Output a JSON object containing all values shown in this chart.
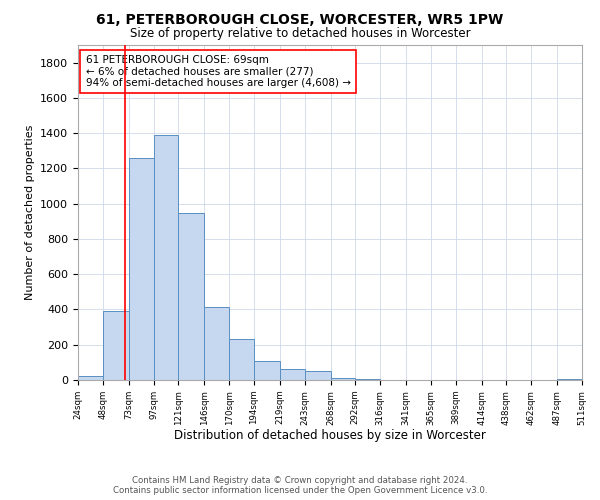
{
  "title": "61, PETERBOROUGH CLOSE, WORCESTER, WR5 1PW",
  "subtitle": "Size of property relative to detached houses in Worcester",
  "xlabel": "Distribution of detached houses by size in Worcester",
  "ylabel": "Number of detached properties",
  "bar_edges": [
    24,
    48,
    73,
    97,
    121,
    146,
    170,
    194,
    219,
    243,
    268,
    292,
    316,
    341,
    365,
    389,
    414,
    438,
    462,
    487,
    511
  ],
  "bar_heights": [
    25,
    390,
    1260,
    1390,
    950,
    415,
    235,
    110,
    65,
    50,
    10,
    5,
    2,
    0,
    0,
    0,
    0,
    0,
    0,
    5
  ],
  "bar_color": "#c5d8f0",
  "bar_edge_color": "#5a8fc2",
  "ylim": [
    0,
    1900
  ],
  "yticks": [
    0,
    200,
    400,
    600,
    800,
    1000,
    1200,
    1400,
    1600,
    1800
  ],
  "red_line_x": 69,
  "annotation_text": "61 PETERBOROUGH CLOSE: 69sqm\n← 6% of detached houses are smaller (277)\n94% of semi-detached houses are larger (4,608) →",
  "footer_line1": "Contains HM Land Registry data © Crown copyright and database right 2024.",
  "footer_line2": "Contains public sector information licensed under the Open Government Licence v3.0.",
  "background_color": "#ffffff",
  "grid_color": "#d0d8e8",
  "tick_labels": [
    "24sqm",
    "48sqm",
    "73sqm",
    "97sqm",
    "121sqm",
    "146sqm",
    "170sqm",
    "194sqm",
    "219sqm",
    "243sqm",
    "268sqm",
    "292sqm",
    "316sqm",
    "341sqm",
    "365sqm",
    "389sqm",
    "414sqm",
    "438sqm",
    "462sqm",
    "487sqm",
    "511sqm"
  ]
}
